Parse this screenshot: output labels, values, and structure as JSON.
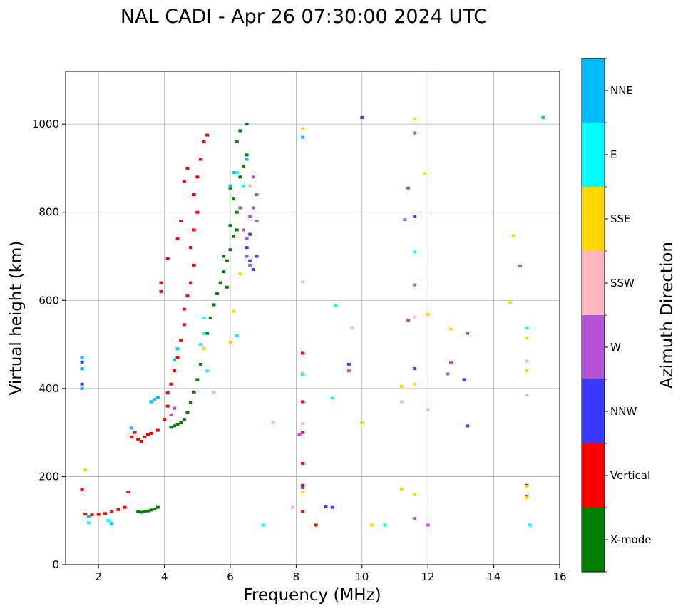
{
  "chart_data": {
    "type": "scatter",
    "title": "NAL CADI - Apr 26 07:30:00 2024 UTC",
    "xlabel": "Frequency (MHz)",
    "ylabel": "Virtual height (km)",
    "xlim": [
      1,
      16
    ],
    "ylim": [
      0,
      1120
    ],
    "xticks": [
      2,
      4,
      6,
      8,
      10,
      12,
      14,
      16
    ],
    "yticks": [
      0,
      200,
      400,
      600,
      800,
      1000
    ],
    "grid": true,
    "colorbar": {
      "label": "Azimuth Direction",
      "categories": [
        "X-mode",
        "Vertical",
        "NNW",
        "W",
        "SSW",
        "SSE",
        "E",
        "NNE"
      ],
      "colors": [
        "#008000",
        "#ff0000",
        "#3a3aff",
        "#b452d6",
        "#ffb6c1",
        "#ffd700",
        "#00ffff",
        "#00bfff"
      ]
    },
    "series": [
      {
        "name": "X-mode",
        "points": [
          [
            3.2,
            120
          ],
          [
            3.3,
            119
          ],
          [
            3.4,
            121
          ],
          [
            3.5,
            122
          ],
          [
            3.6,
            124
          ],
          [
            3.7,
            126
          ],
          [
            3.8,
            130
          ],
          [
            4.2,
            312
          ],
          [
            4.3,
            315
          ],
          [
            4.4,
            318
          ],
          [
            4.5,
            322
          ],
          [
            4.6,
            330
          ],
          [
            4.7,
            345
          ],
          [
            4.8,
            368
          ],
          [
            4.9,
            392
          ],
          [
            5.0,
            420
          ],
          [
            5.1,
            455
          ],
          [
            5.2,
            490
          ],
          [
            5.3,
            525
          ],
          [
            5.4,
            560
          ],
          [
            5.5,
            590
          ],
          [
            5.6,
            615
          ],
          [
            5.7,
            640
          ],
          [
            5.8,
            665
          ],
          [
            5.9,
            690
          ],
          [
            6.0,
            715
          ],
          [
            6.1,
            745
          ],
          [
            6.0,
            770
          ],
          [
            6.2,
            800
          ],
          [
            6.1,
            830
          ],
          [
            6.0,
            855
          ],
          [
            6.3,
            880
          ],
          [
            6.4,
            905
          ],
          [
            6.5,
            930
          ],
          [
            6.2,
            960
          ],
          [
            6.3,
            985
          ],
          [
            6.5,
            1000
          ],
          [
            5.9,
            630
          ],
          [
            5.8,
            700
          ],
          [
            6.2,
            760
          ]
        ]
      },
      {
        "name": "Vertical",
        "points": [
          [
            1.6,
            115
          ],
          [
            1.8,
            113
          ],
          [
            2.0,
            114
          ],
          [
            2.2,
            116
          ],
          [
            2.4,
            120
          ],
          [
            2.6,
            125
          ],
          [
            2.8,
            130
          ],
          [
            3.0,
            290
          ],
          [
            3.1,
            300
          ],
          [
            3.2,
            285
          ],
          [
            3.3,
            280
          ],
          [
            3.4,
            290
          ],
          [
            3.5,
            295
          ],
          [
            3.6,
            298
          ],
          [
            3.8,
            305
          ],
          [
            4.0,
            330
          ],
          [
            4.1,
            360
          ],
          [
            4.1,
            390
          ],
          [
            4.2,
            410
          ],
          [
            4.3,
            440
          ],
          [
            4.4,
            470
          ],
          [
            4.5,
            510
          ],
          [
            4.6,
            545
          ],
          [
            4.6,
            580
          ],
          [
            4.7,
            610
          ],
          [
            4.8,
            640
          ],
          [
            4.9,
            680
          ],
          [
            4.8,
            720
          ],
          [
            4.9,
            760
          ],
          [
            5.0,
            800
          ],
          [
            4.9,
            840
          ],
          [
            5.0,
            880
          ],
          [
            5.1,
            920
          ],
          [
            5.2,
            960
          ],
          [
            5.3,
            975
          ],
          [
            4.6,
            870
          ],
          [
            4.7,
            900
          ],
          [
            4.5,
            780
          ],
          [
            4.4,
            740
          ],
          [
            4.1,
            695
          ],
          [
            3.9,
            640
          ],
          [
            3.9,
            620
          ],
          [
            8.2,
            480
          ],
          [
            8.2,
            370
          ],
          [
            8.2,
            300
          ],
          [
            8.2,
            230
          ],
          [
            8.2,
            180
          ],
          [
            8.2,
            120
          ],
          [
            8.6,
            90
          ],
          [
            15.0,
            155
          ],
          [
            2.9,
            165
          ],
          [
            1.5,
            170
          ]
        ]
      },
      {
        "name": "NNW",
        "points": [
          [
            9.1,
            130
          ],
          [
            8.9,
            131
          ],
          [
            6.6,
            690
          ],
          [
            6.7,
            670
          ],
          [
            6.5,
            720
          ],
          [
            6.6,
            750
          ],
          [
            6.8,
            700
          ],
          [
            13.2,
            315
          ],
          [
            13.1,
            420
          ],
          [
            10.0,
            1015
          ],
          [
            11.6,
            790
          ],
          [
            11.6,
            445
          ],
          [
            9.6,
            455
          ],
          [
            8.2,
            175
          ],
          [
            15.0,
            180
          ],
          [
            1.5,
            460
          ],
          [
            1.5,
            410
          ]
        ]
      },
      {
        "name": "W",
        "points": [
          [
            6.4,
            760
          ],
          [
            6.5,
            740
          ],
          [
            6.6,
            790
          ],
          [
            6.7,
            810
          ],
          [
            6.8,
            780
          ],
          [
            6.5,
            700
          ],
          [
            6.6,
            680
          ],
          [
            6.7,
            880
          ],
          [
            6.8,
            840
          ],
          [
            14.8,
            678
          ],
          [
            12.6,
            433
          ],
          [
            12.7,
            458
          ],
          [
            13.2,
            525
          ],
          [
            11.6,
            980
          ],
          [
            11.6,
            635
          ],
          [
            11.4,
            855
          ],
          [
            11.3,
            783
          ],
          [
            11.4,
            555
          ],
          [
            11.6,
            105
          ],
          [
            12.0,
            90
          ],
          [
            9.6,
            440
          ],
          [
            8.1,
            295
          ],
          [
            4.3,
            355
          ],
          [
            4.2,
            340
          ],
          [
            6.3,
            810
          ]
        ]
      },
      {
        "name": "SSW",
        "points": [
          [
            15.0,
            385
          ],
          [
            15.0,
            462
          ],
          [
            8.2,
            320
          ],
          [
            8.2,
            642
          ],
          [
            11.6,
            562
          ],
          [
            11.2,
            370
          ],
          [
            12.0,
            352
          ],
          [
            9.7,
            538
          ],
          [
            7.3,
            322
          ],
          [
            7.9,
            130
          ],
          [
            5.5,
            390
          ],
          [
            6.6,
            860
          ]
        ]
      },
      {
        "name": "SSE",
        "points": [
          [
            14.5,
            595
          ],
          [
            14.6,
            747
          ],
          [
            15.0,
            515
          ],
          [
            15.0,
            440
          ],
          [
            15.0,
            178
          ],
          [
            15.0,
            152
          ],
          [
            12.7,
            535
          ],
          [
            11.2,
            405
          ],
          [
            11.2,
            172
          ],
          [
            11.6,
            410
          ],
          [
            11.6,
            160
          ],
          [
            11.6,
            1012
          ],
          [
            11.9,
            888
          ],
          [
            12.0,
            568
          ],
          [
            10.3,
            90
          ],
          [
            10.0,
            322
          ],
          [
            8.2,
            990
          ],
          [
            8.2,
            435
          ],
          [
            8.2,
            165
          ],
          [
            6.1,
            575
          ],
          [
            6.0,
            505
          ],
          [
            5.2,
            490
          ],
          [
            1.6,
            215
          ],
          [
            6.3,
            660
          ]
        ]
      },
      {
        "name": "E",
        "points": [
          [
            15.1,
            90
          ],
          [
            15.0,
            537
          ],
          [
            11.6,
            710
          ],
          [
            10.7,
            90
          ],
          [
            9.2,
            588
          ],
          [
            9.1,
            378
          ],
          [
            8.2,
            432
          ],
          [
            7.0,
            90
          ],
          [
            6.2,
            520
          ],
          [
            5.2,
            560
          ],
          [
            5.2,
            525
          ],
          [
            5.1,
            500
          ],
          [
            5.3,
            440
          ],
          [
            6.4,
            860
          ],
          [
            6.2,
            890
          ],
          [
            2.3,
            100
          ],
          [
            2.4,
            95
          ],
          [
            1.7,
            95
          ]
        ]
      },
      {
        "name": "NNE",
        "points": [
          [
            15.5,
            1015
          ],
          [
            8.2,
            970
          ],
          [
            6.5,
            920
          ],
          [
            6.1,
            890
          ],
          [
            6.0,
            860
          ],
          [
            3.7,
            375
          ],
          [
            3.6,
            370
          ],
          [
            3.8,
            380
          ],
          [
            4.3,
            465
          ],
          [
            4.4,
            490
          ],
          [
            1.5,
            470
          ],
          [
            1.5,
            445
          ],
          [
            1.5,
            400
          ],
          [
            1.7,
            110
          ],
          [
            2.4,
            92
          ],
          [
            3.0,
            310
          ]
        ]
      }
    ]
  }
}
